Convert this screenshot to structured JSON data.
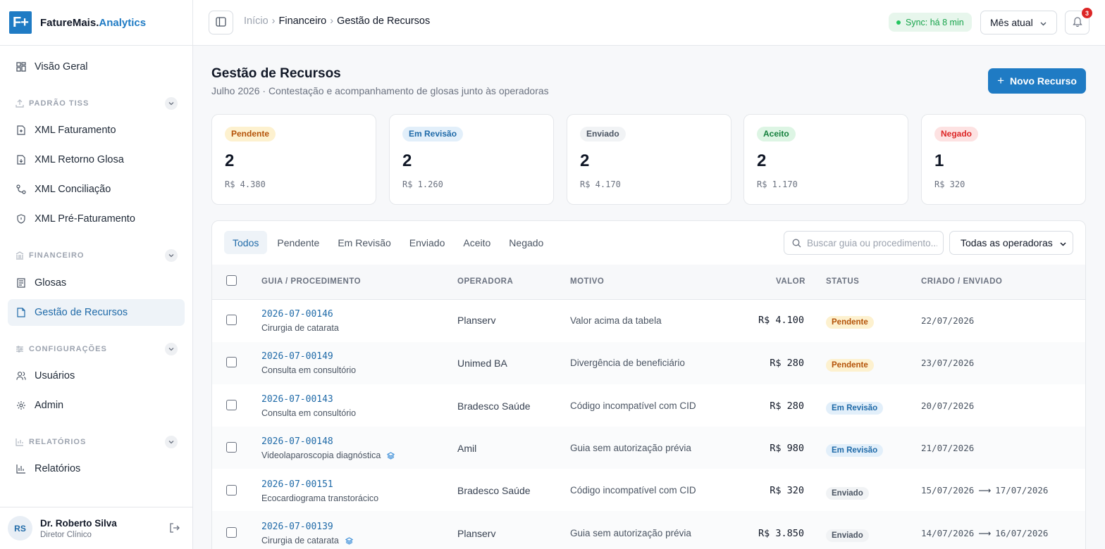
{
  "brand": {
    "logo": "F+",
    "name_main": "FatureMais.",
    "name_accent": "Analytics"
  },
  "sidebar": {
    "overview": "Visão Geral",
    "sections": [
      {
        "label": "PADRÃO TISS"
      },
      {
        "label": "FINANCEIRO"
      },
      {
        "label": "CONFIGURAÇÕES"
      },
      {
        "label": "RELATÓRIOS"
      }
    ],
    "items": [
      {
        "label": "XML Faturamento"
      },
      {
        "label": "XML Retorno Glosa"
      },
      {
        "label": "XML Conciliação"
      },
      {
        "label": "XML Pré-Faturamento"
      },
      {
        "label": "Glosas"
      },
      {
        "label": "Gestão de Recursos"
      },
      {
        "label": "Usuários"
      },
      {
        "label": "Admin"
      },
      {
        "label": "Relatórios"
      }
    ],
    "user": {
      "initials": "RS",
      "name": "Dr. Roberto Silva",
      "role": "Diretor Clínico"
    }
  },
  "header": {
    "breadcrumb": [
      "Início",
      "Financeiro",
      "Gestão de Recursos"
    ],
    "sync": "Sync: há 8 min",
    "period": "Mês atual",
    "notifications": "3"
  },
  "page": {
    "title": "Gestão de Recursos",
    "subtitle": "Julho 2026 · Contestação e acompanhamento de glosas junto às operadoras",
    "new_button": "Novo Recurso"
  },
  "stats": [
    {
      "label": "Pendente",
      "count": "2",
      "amount": "R$ 4.380"
    },
    {
      "label": "Em Revisão",
      "count": "2",
      "amount": "R$ 1.260"
    },
    {
      "label": "Enviado",
      "count": "2",
      "amount": "R$ 4.170"
    },
    {
      "label": "Aceito",
      "count": "2",
      "amount": "R$ 1.170"
    },
    {
      "label": "Negado",
      "count": "1",
      "amount": "R$ 320"
    }
  ],
  "filters": {
    "tabs": [
      "Todos",
      "Pendente",
      "Em Revisão",
      "Enviado",
      "Aceito",
      "Negado"
    ],
    "search_placeholder": "Buscar guia ou procedimento...",
    "operator_select": "Todas as operadoras"
  },
  "table": {
    "columns": [
      "GUIA / PROCEDIMENTO",
      "OPERADORA",
      "MOTIVO",
      "VALOR",
      "STATUS",
      "CRIADO / ENVIADO"
    ],
    "rows": [
      {
        "guia": "2026-07-00146",
        "procedimento": "Cirurgia de catarata",
        "operadora": "Planserv",
        "motivo": "Valor acima da tabela",
        "valor": "R$ 4.100",
        "status": "Pendente",
        "criado": "22/07/2026",
        "enviado": ""
      },
      {
        "guia": "2026-07-00149",
        "procedimento": "Consulta em consultório",
        "operadora": "Unimed BA",
        "motivo": "Divergência de beneficiário",
        "valor": "R$ 280",
        "status": "Pendente",
        "criado": "23/07/2026",
        "enviado": ""
      },
      {
        "guia": "2026-07-00143",
        "procedimento": "Consulta em consultório",
        "operadora": "Bradesco Saúde",
        "motivo": "Código incompatível com CID",
        "valor": "R$ 280",
        "status": "Em Revisão",
        "criado": "20/07/2026",
        "enviado": ""
      },
      {
        "guia": "2026-07-00148",
        "procedimento": "Videolaparoscopia diagnóstica",
        "operadora": "Amil",
        "motivo": "Guia sem autorização prévia",
        "valor": "R$ 980",
        "status": "Em Revisão",
        "criado": "21/07/2026",
        "enviado": ""
      },
      {
        "guia": "2026-07-00151",
        "procedimento": "Ecocardiograma transtorácico",
        "operadora": "Bradesco Saúde",
        "motivo": "Código incompatível com CID",
        "valor": "R$ 320",
        "status": "Enviado",
        "criado": "15/07/2026",
        "enviado": "17/07/2026"
      },
      {
        "guia": "2026-07-00139",
        "procedimento": "Cirurgia de catarata",
        "operadora": "Planserv",
        "motivo": "Guia sem autorização prévia",
        "valor": "R$ 3.850",
        "status": "Enviado",
        "criado": "14/07/2026",
        "enviado": "16/07/2026"
      }
    ]
  },
  "colors": {
    "accent": "#1f7bc4",
    "pendente": "#b45309",
    "em_revisao": "#1f6aa8",
    "enviado": "#4b5563",
    "aceito": "#15803d",
    "negado": "#dc2626"
  }
}
